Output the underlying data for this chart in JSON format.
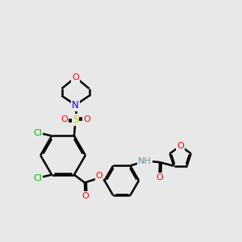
{
  "background_color": "#E8E8E8",
  "line_color": "#000000",
  "bond_width": 1.8,
  "colors": {
    "O": "#FF0000",
    "N": "#0000FF",
    "S": "#CCCC00",
    "Cl": "#00BB00",
    "H": "#6699AA",
    "C": "#000000"
  }
}
